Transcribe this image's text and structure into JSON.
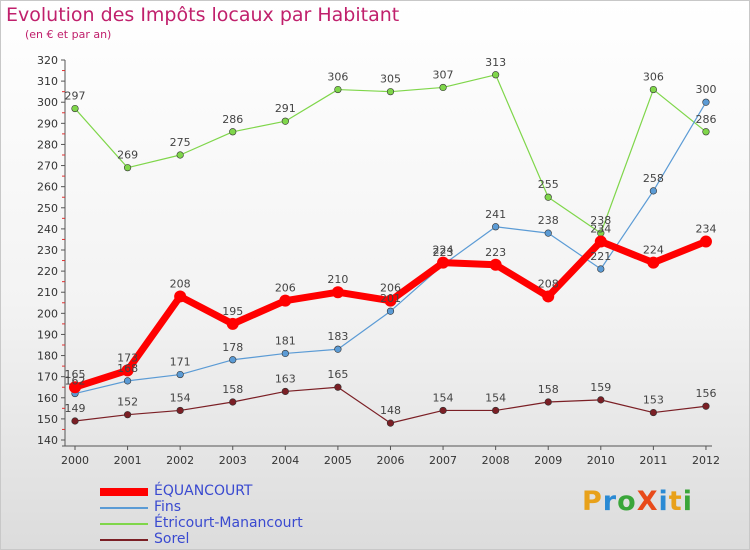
{
  "header": {
    "title": "Evolution des Impôts locaux par Habitant",
    "subtitle": "(en € et par an)"
  },
  "logo": {
    "text": "ProXiti",
    "letters": [
      "P",
      "r",
      "o",
      "X",
      "i",
      "t",
      "i"
    ],
    "colors": [
      "#e8a11a",
      "#2a8ad4",
      "#3aa63a",
      "#e84a1a",
      "#2a8ad4",
      "#e8a11a",
      "#3aa63a"
    ]
  },
  "chart_data": {
    "type": "line",
    "title": "Evolution des Impôts locaux par Habitant",
    "subtitle": "(en € et par an)",
    "xlabel": "",
    "ylabel": "",
    "x": [
      "2000",
      "2001",
      "2002",
      "2003",
      "2004",
      "2005",
      "2006",
      "2007",
      "2008",
      "2009",
      "2010",
      "2011",
      "2012"
    ],
    "ylim": [
      140,
      320
    ],
    "yticks": [
      140,
      150,
      160,
      170,
      180,
      190,
      200,
      210,
      220,
      230,
      240,
      250,
      260,
      270,
      280,
      290,
      300,
      310,
      320
    ],
    "grid": false,
    "legend_position": "bottom-left",
    "series": [
      {
        "name": "ÉQUANCOURT",
        "color": "#ff0000",
        "values": [
          165,
          173,
          208,
          195,
          206,
          210,
          206,
          224,
          223,
          208,
          234,
          224,
          234
        ]
      },
      {
        "name": "Fins",
        "color": "#5b9bd5",
        "values": [
          162,
          168,
          171,
          178,
          181,
          183,
          201,
          223,
          241,
          238,
          221,
          258,
          300
        ]
      },
      {
        "name": "Étricourt-Manancourt",
        "color": "#7fd64a",
        "values": [
          297,
          269,
          275,
          286,
          291,
          306,
          305,
          307,
          313,
          255,
          238,
          306,
          286
        ]
      },
      {
        "name": "Sorel",
        "color": "#7b1f25",
        "values": [
          149,
          152,
          154,
          158,
          163,
          165,
          148,
          154,
          154,
          158,
          159,
          153,
          156
        ]
      }
    ]
  }
}
